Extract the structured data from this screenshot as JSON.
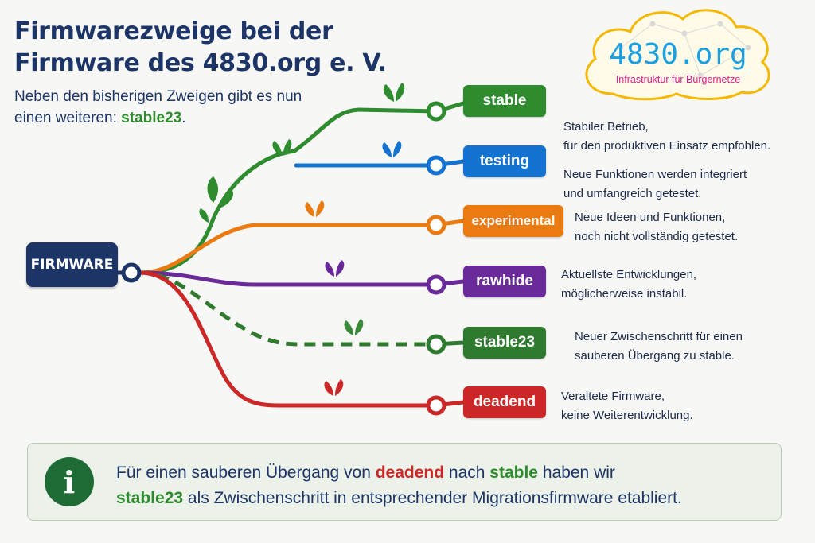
{
  "title": {
    "line1": "Firmwarezweige bei der",
    "line2": "Firmware des 4830.org e. V."
  },
  "intro": {
    "line1": "Neben den bisherigen Zweigen gibt es nun",
    "line2_prefix": "einen weiteren: ",
    "line2_highlight": "stable23",
    "line2_suffix": "."
  },
  "logo": {
    "name": "4830.org",
    "tagline": "Infrastruktur für Bürgernetze",
    "name_color": "#1a9fe0",
    "tagline_color": "#e0208a"
  },
  "root": {
    "label": "FIRMWARE",
    "color": "#1d3566"
  },
  "branches": [
    {
      "label": "stable",
      "color": "#2e8b2e",
      "dashed": false,
      "desc": [
        "Stabiler Betrieb,",
        "für den produktiven Einsatz empfohlen."
      ]
    },
    {
      "label": "testing",
      "color": "#1473d1",
      "dashed": false,
      "desc": [
        "Neue Funktionen werden integriert",
        "und umfangreich getestet."
      ]
    },
    {
      "label": "experimental",
      "color": "#ea7a12",
      "dashed": false,
      "desc": [
        "Neue Ideen und Funktionen,",
        "noch nicht vollständig getestet."
      ]
    },
    {
      "label": "rawhide",
      "color": "#6a2a9a",
      "dashed": false,
      "desc": [
        "Aktuellste Entwicklungen,",
        "möglicherweise instabil."
      ]
    },
    {
      "label": "stable23",
      "color": "#2f7a2f",
      "dashed": true,
      "desc": [
        "Neuer Zwischenschritt für einen",
        "sauberen Übergang zu stable."
      ]
    },
    {
      "label": "deadend",
      "color": "#cc2727",
      "dashed": false,
      "desc": [
        "Veraltete Firmware,",
        "keine Weiterentwicklung."
      ]
    }
  ],
  "info": {
    "icon": "info-icon",
    "p1": "Für einen sauberen Übergang von ",
    "deadend": "deadend",
    "p2": " nach ",
    "stable": "stable",
    "p3": " haben wir",
    "stable23": "stable23",
    "p4": " als Zwischenschritt in entsprechender Migrationsfirmware etabliert."
  }
}
